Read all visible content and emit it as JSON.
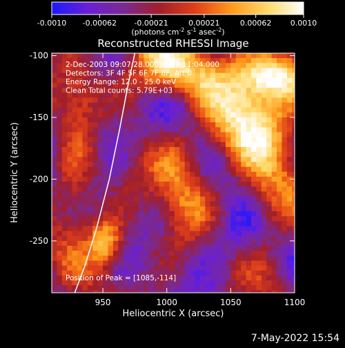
{
  "colorbar": {
    "ticks": [
      "-0.0010",
      "-0.00062",
      "-0.00021",
      "0.00021",
      "0.00062",
      "0.0010"
    ],
    "tick_values": [
      -0.001,
      -0.00062,
      -0.00021,
      0.00021,
      0.00062,
      0.001
    ],
    "units_parts": [
      "(photons cm",
      "-2",
      " s",
      "-1",
      " asec",
      "-2",
      ")"
    ],
    "range": [
      -0.001,
      0.001
    ],
    "stops": [
      "#1a1aff",
      "#6a1fd6",
      "#7a2a90",
      "#a21f2a",
      "#e0401a",
      "#ff9a1a",
      "#ffd96a",
      "#ffffff"
    ]
  },
  "chart_data": {
    "type": "heatmap",
    "title": "Reconstructed RHESSI Image",
    "xlabel": "Heliocentric X (arcsec)",
    "ylabel": "Heliocentric Y (arcsec)",
    "xlim": [
      910,
      1100
    ],
    "ylim": [
      -292,
      -98
    ],
    "xticks": [
      950,
      1000,
      1050,
      1100
    ],
    "yticks": [
      -100,
      -150,
      -200,
      -250
    ],
    "info_lines": [
      "2-Dec-2003 09:07:28.000 to 09:11:04.000",
      "Detectors: 3F 4F 5F 6F 7F 8F, Att 0",
      "Energy Range: 12.0 - 25.0 keV",
      "Clean     Total counts: 5.79E+03"
    ],
    "peak_label": "Position of Peak = [1085,-114]",
    "peak": [
      1085,
      -114
    ],
    "limb_curve": [
      [
        928,
        -292
      ],
      [
        936,
        -270
      ],
      [
        945,
        -240
      ],
      [
        955,
        -200
      ],
      [
        963,
        -160
      ],
      [
        970,
        -122
      ],
      [
        975,
        -98
      ]
    ],
    "bright_regions": [
      {
        "x": 1000,
        "y": -110,
        "w": 40,
        "h": 30,
        "level": 0.8
      },
      {
        "x": 1085,
        "y": -114,
        "w": 30,
        "h": 20,
        "level": 1.0
      },
      {
        "x": 1060,
        "y": -150,
        "w": 30,
        "h": 35,
        "level": 0.85
      },
      {
        "x": 930,
        "y": -140,
        "w": 18,
        "h": 30,
        "level": 0.7
      },
      {
        "x": 925,
        "y": -210,
        "w": 16,
        "h": 40,
        "level": 0.6
      },
      {
        "x": 950,
        "y": -250,
        "w": 14,
        "h": 20,
        "level": 0.85
      },
      {
        "x": 1010,
        "y": -200,
        "w": 20,
        "h": 50,
        "level": 0.6
      },
      {
        "x": 1080,
        "y": -210,
        "w": 22,
        "h": 40,
        "level": 0.65
      }
    ],
    "dark_regions": [
      {
        "x": 940,
        "y": -150,
        "w": 30,
        "h": 30
      },
      {
        "x": 1050,
        "y": -245,
        "w": 25,
        "h": 25
      },
      {
        "x": 1010,
        "y": -140,
        "w": 20,
        "h": 20
      }
    ]
  },
  "footer": {
    "timestamp": "7-May-2022 15:54"
  }
}
